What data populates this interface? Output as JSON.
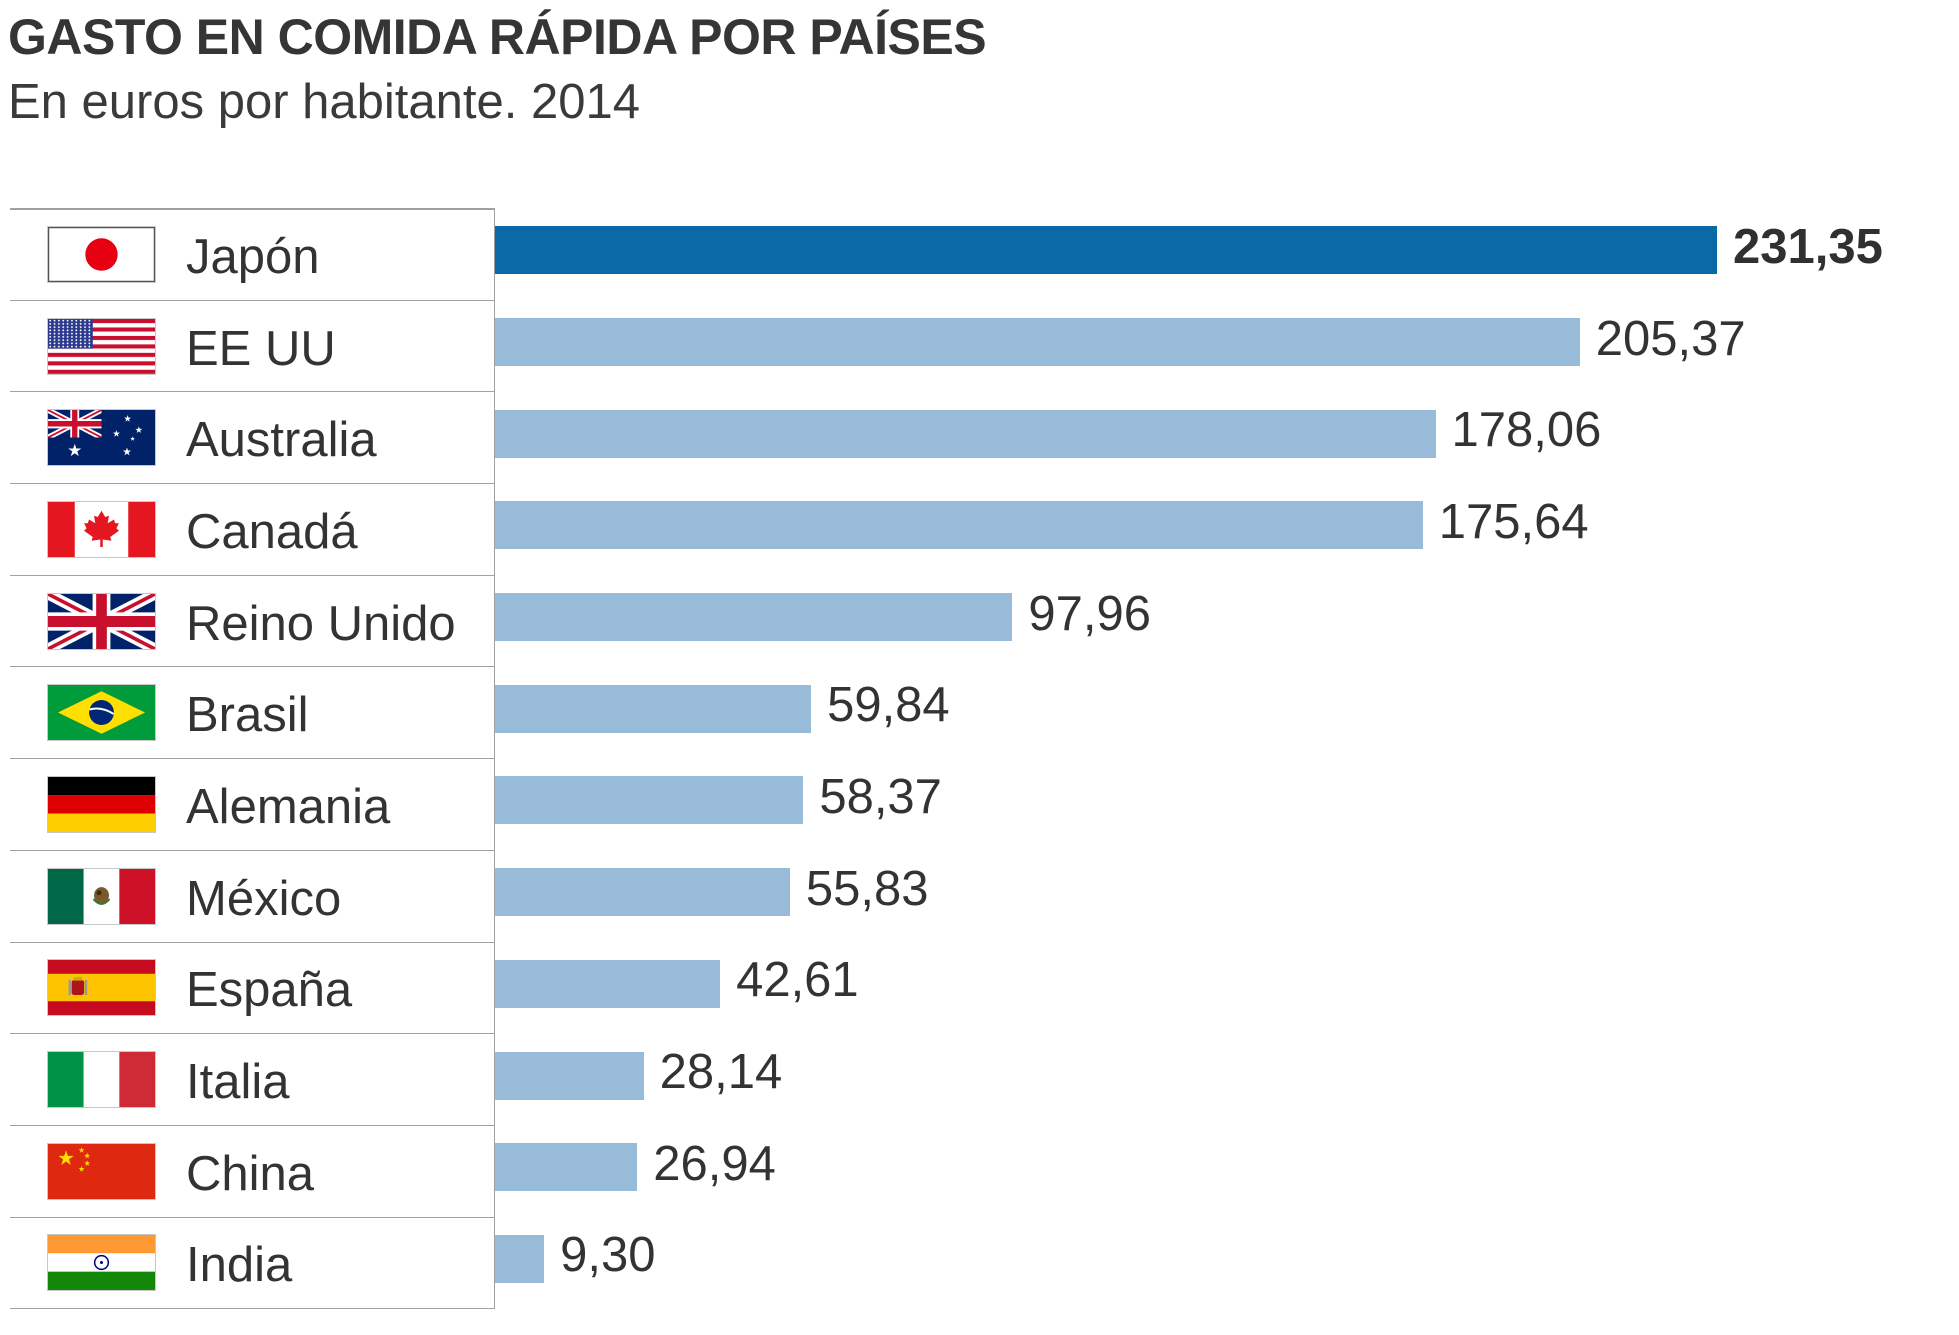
{
  "colors": {
    "highlight_bar": "#0b6aa5",
    "bar": "#97bbd9",
    "text": "#333333",
    "rule": "#a0a0a0"
  },
  "chart_data": {
    "type": "bar",
    "title": "GASTO EN COMIDA RÁPIDA POR PAÍSES",
    "subtitle": "En euros por habitante. 2014",
    "categories": [
      "Japón",
      "EE UU",
      "Australia",
      "Canadá",
      "Reino Unido",
      "Brasil",
      "Alemania",
      "México",
      "España",
      "Italia",
      "China",
      "India"
    ],
    "values": [
      231.35,
      205.37,
      178.06,
      175.64,
      97.96,
      59.84,
      58.37,
      55.83,
      42.61,
      28.14,
      26.94,
      9.3
    ],
    "value_labels": [
      "231,35",
      "205,37",
      "178,06",
      "175,64",
      "97,96",
      "59,84",
      "58,37",
      "55,83",
      "42,61",
      "28,14",
      "26,94",
      "9,30"
    ],
    "flag_icons": [
      "flag-japan-icon",
      "flag-usa-icon",
      "flag-australia-icon",
      "flag-canada-icon",
      "flag-uk-icon",
      "flag-brazil-icon",
      "flag-germany-icon",
      "flag-mexico-icon",
      "flag-spain-icon",
      "flag-italy-icon",
      "flag-china-icon",
      "flag-india-icon"
    ],
    "highlight_index": 0,
    "xlim": [
      0,
      231.35
    ],
    "grid": false
  }
}
